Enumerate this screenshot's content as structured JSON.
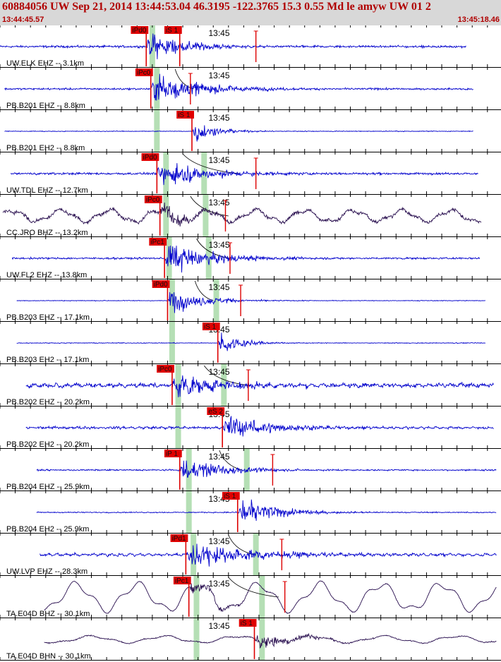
{
  "header": {
    "title": "60884056 UW Sep 21, 2014 13:44:53.04   46.3195 -122.3765 15.3 0.55 Md le amyw UW 01   2",
    "start_time": "13:44:45.57",
    "end_time": "13:45:18.46"
  },
  "colors": {
    "trace_blue": "#0000cc",
    "trace_dark": "#2a1050",
    "pick_red": "#dd0000",
    "pick_label_bg": "#e00000",
    "predicted_green": "#b5dfb5",
    "grid": "#000000",
    "header_bg": "#d8d8d8"
  },
  "chart_data": {
    "type": "seismogram",
    "title": "60884056 UW Sep 21, 2014 13:44:53.04   46.3195 -122.3765 15.3 0.55 Md le amyw UW 01   2",
    "x_units": "seconds after 13:44:45.57",
    "xlim": [
      0,
      32.89
    ],
    "time_label": "13:45",
    "time_label_t": 14.43,
    "tick_interval_s": 1,
    "traces": [
      {
        "label": "UW.ELK EHZ -- 3.1km",
        "dist_km": 3.1,
        "color": "blue",
        "data_start": 0,
        "data_end": 30.6,
        "pre_amp": 0.06,
        "peak_amp": 0.85,
        "coda_s": 7,
        "bg_period": 0,
        "bg_amp": 0,
        "picks": [
          {
            "label": "iPd0",
            "t": 9.6
          },
          {
            "label": "iS 1",
            "t": 11.8
          },
          {
            "label": "",
            "t": 16.8
          }
        ],
        "pred_p": 10.0,
        "pred_s": null,
        "curve": null
      },
      {
        "label": "PB.B201 EHZ -- 8.8km",
        "dist_km": 8.8,
        "color": "blue",
        "data_start": 0.3,
        "data_end": 31.1,
        "pre_amp": 0.05,
        "peak_amp": 0.9,
        "coda_s": 9,
        "bg_period": 0,
        "bg_amp": 0,
        "picks": [
          {
            "label": "iPc0",
            "t": 9.9
          },
          {
            "label": "",
            "t": 12.5
          }
        ],
        "pred_p": 10.3,
        "pred_s": null,
        "curve": [
          11.5,
          12.7
        ]
      },
      {
        "label": "PB.B201 EH2 -- 8.8km",
        "dist_km": 8.8,
        "color": "blue",
        "data_start": 0.3,
        "data_end": 31.1,
        "pre_amp": 0.02,
        "peak_amp": 0.75,
        "coda_s": 4,
        "bg_period": 0,
        "bg_amp": 0,
        "picks": [
          {
            "label": "iS 1",
            "t": 12.6
          }
        ],
        "pred_p": 10.3,
        "pred_s": null,
        "curve": null
      },
      {
        "label": "UW.TDL EHZ -- 12.7km",
        "dist_km": 12.7,
        "color": "blue",
        "data_start": 0.7,
        "data_end": 31.4,
        "pre_amp": 0.06,
        "peak_amp": 0.8,
        "coda_s": 9,
        "bg_period": 0,
        "bg_amp": 0,
        "picks": [
          {
            "label": "iPd0",
            "t": 10.3
          },
          {
            "label": "",
            "t": 16.8
          }
        ],
        "pred_p": 10.9,
        "pred_s": 13.4,
        "curve": [
          12.0,
          15.7
        ]
      },
      {
        "label": "CC.JRO BHZ -- 13.2km",
        "dist_km": 13.2,
        "color": "dark",
        "data_start": 0.2,
        "data_end": 31.6,
        "pre_amp": 0.1,
        "peak_amp": 0.6,
        "coda_s": 5,
        "bg_period": 3.2,
        "bg_amp": 0.35,
        "picks": [
          {
            "label": "iPc0",
            "t": 10.5
          },
          {
            "label": "",
            "t": 14.8
          }
        ],
        "pred_p": 10.9,
        "pred_s": 13.5,
        "curve": [
          12.5,
          15.0
        ]
      },
      {
        "label": "UW.FL2 EHZ -- 13.8km",
        "dist_km": 13.8,
        "color": "blue",
        "data_start": 0.8,
        "data_end": 31.5,
        "pre_amp": 0.05,
        "peak_amp": 0.85,
        "coda_s": 9,
        "bg_period": 0,
        "bg_amp": 0,
        "picks": [
          {
            "label": "iPc1",
            "t": 10.8
          },
          {
            "label": "",
            "t": 15.1
          }
        ],
        "pred_p": 11.1,
        "pred_s": 13.7,
        "curve": [
          12.9,
          15.1
        ]
      },
      {
        "label": "PB.B203 EHZ -- 17.1km",
        "dist_km": 17.1,
        "color": "blue",
        "data_start": 1.1,
        "data_end": 31.9,
        "pre_amp": 0.02,
        "peak_amp": 0.8,
        "coda_s": 6,
        "bg_period": 0,
        "bg_amp": 0,
        "picks": [
          {
            "label": "iPd0",
            "t": 11.0
          },
          {
            "label": "",
            "t": 15.8
          }
        ],
        "pred_p": 11.3,
        "pred_s": 14.2,
        "curve": [
          12.8,
          14.0
        ]
      },
      {
        "label": "PB.B203 EH2 -- 17.1km",
        "dist_km": 17.1,
        "color": "blue",
        "data_start": 1.1,
        "data_end": 31.9,
        "pre_amp": 0.02,
        "peak_amp": 0.75,
        "coda_s": 4,
        "bg_period": 0,
        "bg_amp": 0,
        "picks": [
          {
            "label": "iS 1",
            "t": 14.3
          }
        ],
        "pred_p": 11.3,
        "pred_s": null,
        "curve": null
      },
      {
        "label": "PB.B202 EHZ -- 20.2km",
        "dist_km": 20.2,
        "color": "blue",
        "data_start": 1.7,
        "data_end": 32.4,
        "pre_amp": 0.1,
        "peak_amp": 0.75,
        "coda_s": 9,
        "bg_period": 0.7,
        "bg_amp": 0.06,
        "picks": [
          {
            "label": "iPc0",
            "t": 11.3
          },
          {
            "label": "",
            "t": 16.3
          }
        ],
        "pred_p": 11.7,
        "pred_s": 14.7,
        "curve": [
          13.4,
          16.3
        ]
      },
      {
        "label": "PB.B202 EH2 -- 20.2km",
        "dist_km": 20.2,
        "color": "blue",
        "data_start": 1.7,
        "data_end": 32.4,
        "pre_amp": 0.06,
        "peak_amp": 0.8,
        "coda_s": 8,
        "bg_period": 0.5,
        "bg_amp": 0.03,
        "picks": [
          {
            "label": "eS 2",
            "t": 14.6
          }
        ],
        "pred_p": 11.7,
        "pred_s": null,
        "curve": null
      },
      {
        "label": "PB.B204 EHZ -- 25.9km",
        "dist_km": 25.9,
        "color": "blue",
        "data_start": 2.4,
        "data_end": 32.6,
        "pre_amp": 0.04,
        "peak_amp": 0.75,
        "coda_s": 8,
        "bg_period": 0,
        "bg_amp": 0,
        "picks": [
          {
            "label": "iP 1",
            "t": 11.8
          },
          {
            "label": "",
            "t": 17.9
          }
        ],
        "pred_p": 12.4,
        "pred_s": 16.2,
        "curve": [
          14.4,
          15.9
        ]
      },
      {
        "label": "PB.B204 EH2 -- 25.9km",
        "dist_km": 25.9,
        "color": "blue",
        "data_start": 2.4,
        "data_end": 32.6,
        "pre_amp": 0.03,
        "peak_amp": 0.8,
        "coda_s": 7,
        "bg_period": 0,
        "bg_amp": 0,
        "picks": [
          {
            "label": "iS 1",
            "t": 15.6
          }
        ],
        "pred_p": 12.4,
        "pred_s": null,
        "curve": null
      },
      {
        "label": "UW.LVP EHZ -- 28.3km",
        "dist_km": 28.3,
        "color": "blue",
        "data_start": 2.6,
        "data_end": 32.6,
        "pre_amp": 0.06,
        "peak_amp": 0.8,
        "coda_s": 12,
        "bg_period": 0.6,
        "bg_amp": 0.05,
        "picks": [
          {
            "label": "iPd1",
            "t": 12.2
          },
          {
            "label": "",
            "t": 18.5
          }
        ],
        "pred_p": 12.7,
        "pred_s": 16.8,
        "curve": [
          15.0,
          16.7
        ]
      },
      {
        "label": "TA.E04D BHZ -- 30.1km",
        "dist_km": 30.1,
        "color": "dark",
        "data_start": 2.9,
        "data_end": 32.6,
        "pre_amp": 0.02,
        "peak_amp": 0.4,
        "coda_s": 5,
        "bg_period": 4.0,
        "bg_amp": 0.8,
        "picks": [
          {
            "label": "iPc1",
            "t": 12.4
          },
          {
            "label": "",
            "t": 18.7
          }
        ],
        "pred_p": 12.9,
        "pred_s": 17.2,
        "curve": [
          15.0,
          18.3
        ]
      },
      {
        "label": "TA.E04D BHN -- 30.1km",
        "dist_km": 30.1,
        "color": "dark",
        "data_start": 2.9,
        "data_end": 32.6,
        "pre_amp": 0.03,
        "peak_amp": 0.55,
        "coda_s": 6,
        "bg_period": 4.8,
        "bg_amp": 0.2,
        "picks": [
          {
            "label": "iS 1",
            "t": 16.7
          }
        ],
        "pred_p": 12.9,
        "pred_s": 17.2,
        "curve": null
      }
    ]
  }
}
